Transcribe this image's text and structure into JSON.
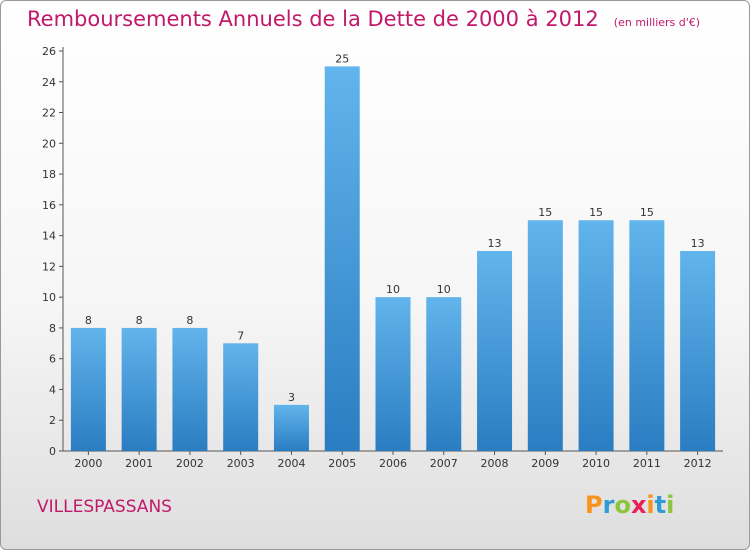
{
  "title": "Remboursements Annuels de la Dette de 2000 à 2012",
  "subtitle": "(en milliers d'€)",
  "commune": "VILLESPASSANS",
  "logo": {
    "text": "Proxiti",
    "letters": [
      "P",
      "r",
      "o",
      "x",
      "i",
      "t",
      "i"
    ],
    "colors": [
      "#f7941d",
      "#2e9bd6",
      "#8cc63f",
      "#e8215a",
      "#f7941d",
      "#2e9bd6",
      "#8cc63f"
    ]
  },
  "colors": {
    "bar_light": "#62b4ec",
    "bar_dark": "#2a7dc1",
    "accent": "#c2186a"
  },
  "chart_data": {
    "type": "bar",
    "categories": [
      "2000",
      "2001",
      "2002",
      "2003",
      "2004",
      "2005",
      "2006",
      "2007",
      "2008",
      "2009",
      "2010",
      "2011",
      "2012"
    ],
    "values": [
      8,
      8,
      8,
      7,
      3,
      25,
      10,
      10,
      13,
      15,
      15,
      15,
      13
    ],
    "ylim": [
      0,
      26
    ],
    "yticks": [
      0,
      2,
      4,
      6,
      8,
      10,
      12,
      14,
      16,
      18,
      20,
      22,
      24,
      26
    ],
    "grid": false,
    "legend": "none"
  }
}
